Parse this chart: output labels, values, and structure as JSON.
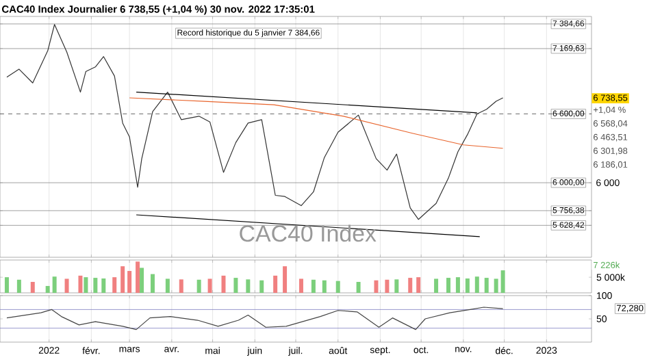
{
  "chart_data": [
    {
      "type": "line",
      "title": "CAC40 Index Journalier 6 738,55 (+1,04 %) 30 nov. 2022 17:35:01",
      "xlim": [
        "2021-11-26",
        "2023-02-03"
      ],
      "ylim": [
        5350,
        7450
      ],
      "tick_labels": "y",
      "grid": "x",
      "yticks": [
        {
          "value": 5628.42,
          "label": "5 628,42"
        },
        {
          "value": 5756.38,
          "label": "5 756,38"
        },
        {
          "value": 6000,
          "label": "6 000,00"
        },
        {
          "value": 6600,
          "label": "6 600,00"
        },
        {
          "value": 7169.63,
          "label": "7 169,63"
        },
        {
          "value": 7384.66,
          "label": "7 384,66"
        }
      ],
      "xticks": [
        {
          "value": "2022-01-01",
          "label": null
        },
        {
          "value": "2022-02-01",
          "label": null
        },
        {
          "value": "2022-03-01",
          "label": null
        },
        {
          "value": "2022-04-01",
          "label": null
        },
        {
          "value": "2022-05-01",
          "label": null
        },
        {
          "value": "2022-06-01",
          "label": null
        },
        {
          "value": "2022-07-01",
          "label": null
        },
        {
          "value": "2022-08-01",
          "label": null
        },
        {
          "value": "2022-09-01",
          "label": null
        },
        {
          "value": "2022-10-01",
          "label": null
        },
        {
          "value": "2022-11-01",
          "label": null
        },
        {
          "value": "2022-12-01",
          "label": null
        },
        {
          "value": "2023-01-01",
          "label": null
        }
      ],
      "series": [
        {
          "color": "#333333",
          "x": [
            "2021-12-01",
            "2021-12-10",
            "2021-12-20",
            "2021-12-31",
            "2022-01-05",
            "2022-01-14",
            "2022-01-24",
            "2022-01-28",
            "2022-02-04",
            "2022-02-10",
            "2022-02-18",
            "2022-02-24",
            "2022-03-01",
            "2022-03-07",
            "2022-03-10",
            "2022-03-18",
            "2022-03-29",
            "2022-04-08",
            "2022-04-21",
            "2022-04-29",
            "2022-05-09",
            "2022-05-18",
            "2022-05-27",
            "2022-06-06",
            "2022-06-16",
            "2022-06-23",
            "2022-07-05",
            "2022-07-14",
            "2022-07-22",
            "2022-08-01",
            "2022-08-16",
            "2022-08-29",
            "2022-09-06",
            "2022-09-13",
            "2022-09-23",
            "2022-09-29",
            "2022-10-12",
            "2022-10-21",
            "2022-10-28",
            "2022-11-04",
            "2022-11-11",
            "2022-11-18",
            "2022-11-25",
            "2022-11-30"
          ],
          "values": [
            6920,
            6990,
            6870,
            7150,
            7380,
            7140,
            6790,
            6970,
            7010,
            7100,
            6930,
            6520,
            6400,
            5960,
            6210,
            6620,
            6790,
            6550,
            6580,
            6530,
            6090,
            6350,
            6520,
            6550,
            5890,
            5880,
            5800,
            5920,
            6220,
            6440,
            6590,
            6210,
            6110,
            6250,
            5780,
            5680,
            5820,
            6040,
            6270,
            6420,
            6600,
            6640,
            6710,
            6740
          ]
        },
        {
          "color": "#e8642c",
          "x": [
            "2022-03-01",
            "2022-04-25",
            "2022-06-15",
            "2022-08-05",
            "2022-09-25",
            "2022-11-01",
            "2022-11-30"
          ],
          "values": [
            6740,
            6710,
            6680,
            6580,
            6430,
            6330,
            6300
          ]
        },
        {
          "color": "#000000",
          "x": [
            "2022-03-06",
            "2022-11-11"
          ],
          "values": [
            6790,
            6610
          ]
        },
        {
          "color": "#000000",
          "x": [
            "2022-03-06",
            "2022-11-13"
          ],
          "values": [
            5720,
            5530
          ]
        }
      ],
      "ref_lines": [
        {
          "axis": "y",
          "value": 7384.66,
          "color": "#888888"
        },
        {
          "axis": "y",
          "value": 7169.63,
          "color": "#888888"
        },
        {
          "axis": "y",
          "value": 6600,
          "color": "#444444",
          "line_style": "dashed"
        },
        {
          "axis": "y",
          "value": 6000,
          "label": "6 000",
          "color": "#888888"
        },
        {
          "axis": "y",
          "value": 5756.38,
          "color": "#888888"
        },
        {
          "axis": "y",
          "value": 5628.42,
          "color": "#888888"
        }
      ],
      "annotations": [
        "Record historique du 5 janvier 7 384,66",
        "CAC40 Index",
        "6 738,55",
        "+1,04 %",
        "6 568,04",
        "6 463,51",
        "6 301,98",
        "6 186,01"
      ]
    },
    {
      "type": "bar",
      "xlim": [
        "2021-11-26",
        "2023-02-03"
      ],
      "ylim": [
        0,
        10500
      ],
      "yticks": [
        {
          "value": 5000,
          "label": "5 000k"
        }
      ],
      "tick_labels": "y",
      "grid": "x",
      "xticks": [
        {
          "value": "2022-01-01",
          "label": null
        },
        {
          "value": "2022-02-01",
          "label": null
        },
        {
          "value": "2022-03-01",
          "label": null
        },
        {
          "value": "2022-04-01",
          "label": null
        },
        {
          "value": "2022-05-01",
          "label": null
        },
        {
          "value": "2022-06-01",
          "label": null
        },
        {
          "value": "2022-07-01",
          "label": null
        },
        {
          "value": "2022-08-01",
          "label": null
        },
        {
          "value": "2022-09-01",
          "label": null
        },
        {
          "value": "2022-10-01",
          "label": null
        },
        {
          "value": "2022-11-01",
          "label": null
        },
        {
          "value": "2022-12-01",
          "label": null
        },
        {
          "value": "2023-01-01",
          "label": null
        }
      ],
      "x": [
        "2021-12-01",
        "2021-12-10",
        "2021-12-20",
        "2021-12-31",
        "2022-01-05",
        "2022-01-14",
        "2022-01-24",
        "2022-01-28",
        "2022-02-04",
        "2022-02-10",
        "2022-02-18",
        "2022-02-24",
        "2022-03-01",
        "2022-03-07",
        "2022-03-10",
        "2022-03-18",
        "2022-03-29",
        "2022-04-08",
        "2022-04-21",
        "2022-04-29",
        "2022-05-09",
        "2022-05-18",
        "2022-05-27",
        "2022-06-06",
        "2022-06-16",
        "2022-06-23",
        "2022-07-05",
        "2022-07-14",
        "2022-07-22",
        "2022-08-01",
        "2022-08-16",
        "2022-08-29",
        "2022-09-06",
        "2022-09-13",
        "2022-09-23",
        "2022-09-29",
        "2022-10-12",
        "2022-10-21",
        "2022-10-28",
        "2022-11-04",
        "2022-11-11",
        "2022-11-18",
        "2022-11-25",
        "2022-11-30"
      ],
      "values": [
        5000,
        4200,
        3500,
        2200,
        5200,
        4500,
        5500,
        5000,
        4800,
        4600,
        5000,
        8500,
        7000,
        10000,
        8000,
        6000,
        4500,
        4300,
        4200,
        4500,
        5500,
        4800,
        4300,
        4000,
        5500,
        8500,
        4500,
        4200,
        4000,
        3800,
        3500,
        4000,
        4200,
        4300,
        4800,
        5000,
        4500,
        4800,
        5000,
        4600,
        5200,
        4800,
        4500,
        7200
      ],
      "colors": [
        "#7ccf7c",
        "#7ccf7c",
        "#f08080",
        "#7ccf7c",
        "#7ccf7c",
        "#f08080",
        "#f08080",
        "#7ccf7c",
        "#7ccf7c",
        "#7ccf7c",
        "#f08080",
        "#f08080",
        "#f08080",
        "#f08080",
        "#7ccf7c",
        "#7ccf7c",
        "#7ccf7c",
        "#f08080",
        "#7ccf7c",
        "#f08080",
        "#f08080",
        "#7ccf7c",
        "#7ccf7c",
        "#7ccf7c",
        "#f08080",
        "#f08080",
        "#f08080",
        "#7ccf7c",
        "#7ccf7c",
        "#7ccf7c",
        "#7ccf7c",
        "#f08080",
        "#f08080",
        "#7ccf7c",
        "#f08080",
        "#f08080",
        "#7ccf7c",
        "#7ccf7c",
        "#7ccf7c",
        "#7ccf7c",
        "#7ccf7c",
        "#7ccf7c",
        "#7ccf7c",
        "#7ccf7c"
      ],
      "annotations": [
        "7 226k"
      ]
    },
    {
      "type": "line",
      "xlim": [
        "2021-11-26",
        "2023-02-03"
      ],
      "ylim": [
        0,
        100
      ],
      "yticks": [
        100,
        50
      ],
      "grid": "x",
      "xticks": [
        {
          "value": "2022-01-01",
          "label": "2022"
        },
        {
          "value": "2022-02-01",
          "label": "févr."
        },
        {
          "value": "2022-03-01",
          "label": "mars"
        },
        {
          "value": "2022-04-01",
          "label": "avr."
        },
        {
          "value": "2022-05-01",
          "label": "mai"
        },
        {
          "value": "2022-06-01",
          "label": "juin"
        },
        {
          "value": "2022-07-01",
          "label": "juil."
        },
        {
          "value": "2022-08-01",
          "label": "août"
        },
        {
          "value": "2022-09-01",
          "label": "sept."
        },
        {
          "value": "2022-10-01",
          "label": "oct."
        },
        {
          "value": "2022-11-01",
          "label": "nov."
        },
        {
          "value": "2022-12-01",
          "label": "déc."
        },
        {
          "value": "2023-01-01",
          "label": "2023"
        }
      ],
      "series": [
        {
          "color": "#444444",
          "x": [
            "2021-12-01",
            "2021-12-26",
            "2022-01-03",
            "2022-01-10",
            "2022-01-23",
            "2022-02-04",
            "2022-02-24",
            "2022-03-06",
            "2022-03-16",
            "2022-03-31",
            "2022-04-20",
            "2022-05-05",
            "2022-05-20",
            "2022-05-27",
            "2022-06-09",
            "2022-06-24",
            "2022-07-19",
            "2022-08-01",
            "2022-08-15",
            "2022-08-31",
            "2022-09-10",
            "2022-09-27",
            "2022-10-04",
            "2022-10-22",
            "2022-11-06",
            "2022-11-16",
            "2022-11-30"
          ],
          "values": [
            52,
            63,
            70,
            55,
            37,
            44,
            34,
            27,
            52,
            55,
            47,
            34,
            47,
            58,
            32,
            34,
            55,
            68,
            65,
            32,
            52,
            27,
            50,
            63,
            70,
            75,
            72
          ]
        }
      ],
      "ref_lines": [
        {
          "axis": "y",
          "value": 70,
          "color": "#8080c0"
        },
        {
          "axis": "y",
          "value": 30,
          "color": "#8080c0"
        }
      ],
      "annotations": [
        "72,280"
      ]
    }
  ]
}
